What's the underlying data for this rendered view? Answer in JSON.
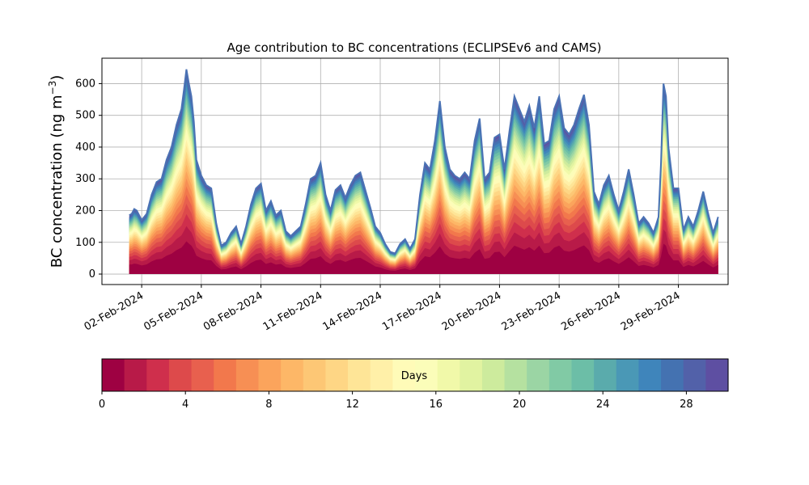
{
  "chart_data": {
    "type": "area",
    "title": "Age contribution to BC concentrations (ECLIPSEv6 and CAMS)",
    "xlabel": "",
    "ylabel_main": "BC concentration (ng m",
    "ylabel_sup": "−3",
    "ylabel_close": ")",
    "ylim": [
      -33,
      680
    ],
    "yticks": [
      0,
      100,
      200,
      300,
      400,
      500,
      600
    ],
    "xlim": [
      "2024-01-31T00:00",
      "2024-03-02T12:00"
    ],
    "xticks": [
      "2024-02-02",
      "2024-02-05",
      "2024-02-08",
      "2024-02-11",
      "2024-02-14",
      "2024-02-17",
      "2024-02-20",
      "2024-02-23",
      "2024-02-26",
      "2024-02-29"
    ],
    "xtick_labels": [
      "02-Feb-2024",
      "05-Feb-2024",
      "08-Feb-2024",
      "11-Feb-2024",
      "14-Feb-2024",
      "17-Feb-2024",
      "20-Feb-2024",
      "23-Feb-2024",
      "26-Feb-2024",
      "29-Feb-2024"
    ],
    "grid": true,
    "series_label": "Days",
    "age_bins_days": [
      0,
      30
    ],
    "total_series": {
      "x": [
        "2024-02-01T09:00",
        "2024-02-01T12:00",
        "2024-02-01T15:00",
        "2024-02-01T18:00",
        "2024-02-02T00:00",
        "2024-02-02T06:00",
        "2024-02-02T12:00",
        "2024-02-02T18:00",
        "2024-02-03T00:00",
        "2024-02-03T06:00",
        "2024-02-03T12:00",
        "2024-02-03T18:00",
        "2024-02-04T00:00",
        "2024-02-04T03:00",
        "2024-02-04T06:00",
        "2024-02-04T09:00",
        "2024-02-04T12:00",
        "2024-02-04T15:00",
        "2024-02-04T18:00",
        "2024-02-05T00:00",
        "2024-02-05T06:00",
        "2024-02-05T12:00",
        "2024-02-05T18:00",
        "2024-02-06T00:00",
        "2024-02-06T06:00",
        "2024-02-06T12:00",
        "2024-02-06T18:00",
        "2024-02-07T00:00",
        "2024-02-07T06:00",
        "2024-02-07T12:00",
        "2024-02-07T18:00",
        "2024-02-08T00:00",
        "2024-02-08T06:00",
        "2024-02-08T12:00",
        "2024-02-08T18:00",
        "2024-02-09T00:00",
        "2024-02-09T06:00",
        "2024-02-09T12:00",
        "2024-02-09T18:00",
        "2024-02-10T00:00",
        "2024-02-10T06:00",
        "2024-02-10T12:00",
        "2024-02-10T18:00",
        "2024-02-11T00:00",
        "2024-02-11T06:00",
        "2024-02-11T12:00",
        "2024-02-11T18:00",
        "2024-02-12T00:00",
        "2024-02-12T06:00",
        "2024-02-12T12:00",
        "2024-02-12T18:00",
        "2024-02-13T00:00",
        "2024-02-13T06:00",
        "2024-02-13T12:00",
        "2024-02-13T18:00",
        "2024-02-14T00:00",
        "2024-02-14T06:00",
        "2024-02-14T12:00",
        "2024-02-14T18:00",
        "2024-02-15T00:00",
        "2024-02-15T06:00",
        "2024-02-15T12:00",
        "2024-02-15T18:00",
        "2024-02-16T00:00",
        "2024-02-16T06:00",
        "2024-02-16T12:00",
        "2024-02-16T18:00",
        "2024-02-17T00:00",
        "2024-02-17T06:00",
        "2024-02-17T12:00",
        "2024-02-17T18:00",
        "2024-02-18T00:00",
        "2024-02-18T06:00",
        "2024-02-18T12:00",
        "2024-02-18T18:00",
        "2024-02-19T00:00",
        "2024-02-19T06:00",
        "2024-02-19T12:00",
        "2024-02-19T18:00",
        "2024-02-20T00:00",
        "2024-02-20T06:00",
        "2024-02-20T12:00",
        "2024-02-20T18:00",
        "2024-02-21T00:00",
        "2024-02-21T06:00",
        "2024-02-21T12:00",
        "2024-02-21T18:00",
        "2024-02-22T00:00",
        "2024-02-22T06:00",
        "2024-02-22T12:00",
        "2024-02-22T18:00",
        "2024-02-23T00:00",
        "2024-02-23T06:00",
        "2024-02-23T12:00",
        "2024-02-23T18:00",
        "2024-02-24T00:00",
        "2024-02-24T06:00",
        "2024-02-24T12:00",
        "2024-02-24T18:00",
        "2024-02-25T00:00",
        "2024-02-25T06:00",
        "2024-02-25T12:00",
        "2024-02-25T18:00",
        "2024-02-26T00:00",
        "2024-02-26T06:00",
        "2024-02-26T12:00",
        "2024-02-26T18:00",
        "2024-02-27T00:00",
        "2024-02-27T06:00",
        "2024-02-27T12:00",
        "2024-02-27T18:00",
        "2024-02-28T00:00",
        "2024-02-28T03:00",
        "2024-02-28T06:00",
        "2024-02-28T09:00",
        "2024-02-28T12:00",
        "2024-02-28T18:00",
        "2024-02-29T00:00",
        "2024-02-29T06:00",
        "2024-02-29T12:00",
        "2024-02-29T18:00",
        "2024-03-01T00:00",
        "2024-03-01T06:00",
        "2024-03-01T12:00",
        "2024-03-01T18:00",
        "2024-03-02T00:00"
      ],
      "y": [
        185,
        190,
        205,
        200,
        170,
        190,
        250,
        290,
        300,
        360,
        400,
        470,
        520,
        580,
        645,
        600,
        560,
        480,
        360,
        310,
        280,
        270,
        160,
        90,
        100,
        130,
        150,
        95,
        150,
        220,
        270,
        285,
        200,
        230,
        185,
        200,
        135,
        120,
        135,
        150,
        220,
        300,
        310,
        350,
        250,
        200,
        265,
        280,
        240,
        280,
        310,
        320,
        265,
        210,
        150,
        130,
        95,
        70,
        65,
        95,
        110,
        80,
        110,
        250,
        350,
        330,
        420,
        545,
        400,
        330,
        310,
        300,
        320,
        300,
        420,
        490,
        300,
        320,
        430,
        440,
        330,
        450,
        560,
        520,
        480,
        530,
        460,
        560,
        410,
        420,
        520,
        560,
        460,
        440,
        470,
        520,
        565,
        470,
        260,
        220,
        280,
        310,
        250,
        200,
        260,
        330,
        250,
        160,
        180,
        160,
        130,
        180,
        350,
        600,
        560,
        400,
        270,
        270,
        140,
        180,
        150,
        200,
        260,
        190,
        130,
        180
      ]
    },
    "colorbar": {
      "range": [
        0,
        30
      ],
      "ticks": [
        0,
        4,
        8,
        12,
        16,
        20,
        24,
        28
      ],
      "colors": [
        "#9e0142",
        "#b81a48",
        "#cf2f4c",
        "#dd4a4b",
        "#e8604e",
        "#f2784c",
        "#f78f54",
        "#fba45c",
        "#fdb767",
        "#fdc775",
        "#fed685",
        "#fee597",
        "#fff0a8",
        "#fffbb8",
        "#fbfdb9",
        "#f1f9a9",
        "#e1f3a1",
        "#cdeb9d",
        "#b5e1a0",
        "#9bd5a4",
        "#81caa5",
        "#6cbea7",
        "#5aabac",
        "#4a98b6",
        "#3f85bb",
        "#4472b1",
        "#5261a9",
        "#5e4fa2"
      ]
    }
  }
}
